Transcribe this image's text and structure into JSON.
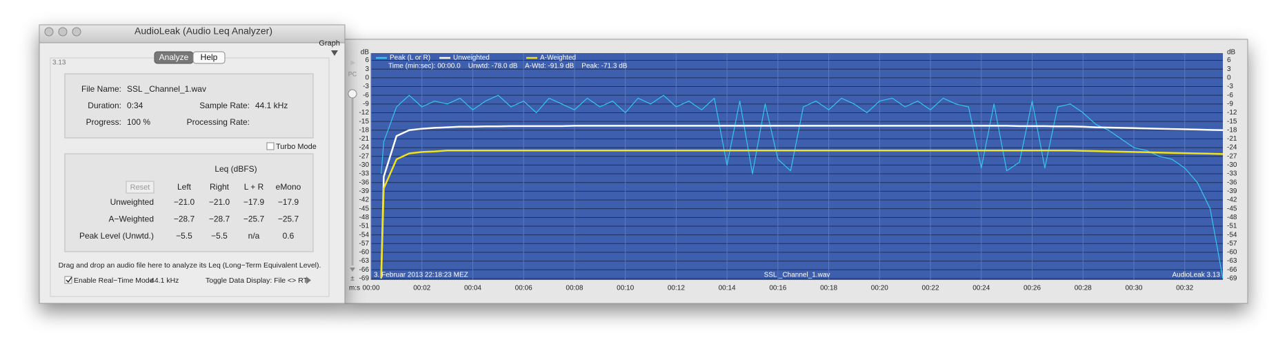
{
  "window": {
    "title": "AudioLeak (Audio Leq Analyzer)",
    "graph_toggle": "Graph",
    "version": "3.13",
    "tabs": [
      "Analyze",
      "Help"
    ],
    "file_info": {
      "file_name_label": "File Name:",
      "file_name": "SSL _Channel_1.wav",
      "duration_label": "Duration:",
      "duration": "0:34",
      "sample_rate_label": "Sample Rate:",
      "sample_rate": "44.1 kHz",
      "progress_label": "Progress:",
      "progress": "100 %",
      "processing_rate_label": "Processing Rate:"
    },
    "turbo_mode": "Turbo Mode",
    "leq": {
      "title": "Leq (dBFS)",
      "reset": "Reset",
      "headers": [
        "Left",
        "Right",
        "L + R",
        "eMono"
      ],
      "rows": [
        [
          "Unweighted",
          "−21.0",
          "−21.0",
          "−17.9",
          "−17.9"
        ],
        [
          "A−Weighted",
          "−28.7",
          "−28.7",
          "−25.7",
          "−25.7"
        ],
        [
          "Peak Level (Unwtd.)",
          "−5.5",
          "−5.5",
          "n/a",
          "0.6"
        ]
      ]
    },
    "instruction": "Drag and drop an audio file here to analyze its Leq (Long−Term Equivalent Level).",
    "realtime_label": "Enable Real−Time Mode",
    "realtime_rate": "44.1 kHz",
    "toggle_display": "Toggle Data Display: File <> RT",
    "side_labels": [
      "PC",
      "±"
    ]
  },
  "chart_data": {
    "type": "line",
    "y_label": "dB",
    "x_label": "m:s",
    "info": "Time (min:sec): 00:00.0    Unwtd: -78.0 dB    A-Wtd: -91.9 dB    Peak: -71.3 dB",
    "footer_left": "3. Februar 2013 22:18:23 MEZ",
    "footer_center": "SSL _Channel_1.wav",
    "footer_right": "AudioLeak 3.13",
    "xlim": [
      0,
      33.5
    ],
    "ylim": [
      -69.5,
      8.5
    ],
    "grid": true,
    "background": "#3d5fae",
    "xticks": [
      {
        "value": 0,
        "label": "00:00"
      },
      {
        "value": 2,
        "label": "00:02"
      },
      {
        "value": 4,
        "label": "00:04"
      },
      {
        "value": 6,
        "label": "00:06"
      },
      {
        "value": 8,
        "label": "00:08"
      },
      {
        "value": 10,
        "label": "00:10"
      },
      {
        "value": 12,
        "label": "00:12"
      },
      {
        "value": 14,
        "label": "00:14"
      },
      {
        "value": 16,
        "label": "00:16"
      },
      {
        "value": 18,
        "label": "00:18"
      },
      {
        "value": 20,
        "label": "00:20"
      },
      {
        "value": 22,
        "label": "00:22"
      },
      {
        "value": 24,
        "label": "00:24"
      },
      {
        "value": 26,
        "label": "00:26"
      },
      {
        "value": 28,
        "label": "00:28"
      },
      {
        "value": 30,
        "label": "00:30"
      },
      {
        "value": 32,
        "label": "00:32"
      }
    ],
    "yticks": [
      6,
      3,
      0,
      -3,
      -6,
      -9,
      -12,
      -15,
      -18,
      -21,
      -24,
      -27,
      -30,
      -33,
      -36,
      -39,
      -42,
      -45,
      -48,
      -51,
      -54,
      -57,
      -60,
      -63,
      -66,
      -69
    ],
    "x": [
      0.4,
      0.5,
      1,
      1.5,
      2,
      2.5,
      3,
      3.5,
      4,
      4.5,
      5,
      5.5,
      6,
      6.5,
      7,
      7.5,
      8,
      8.5,
      9,
      9.5,
      10,
      10.5,
      11,
      11.5,
      12,
      12.5,
      13,
      13.5,
      14,
      14.5,
      15,
      15.5,
      16,
      16.5,
      17,
      17.5,
      18,
      18.5,
      19,
      19.5,
      20,
      20.5,
      21,
      21.5,
      22,
      22.5,
      23,
      23.5,
      24,
      24.5,
      25,
      25.5,
      26,
      26.5,
      27,
      27.5,
      28,
      28.5,
      29,
      29.5,
      30,
      30.5,
      31,
      31.5,
      32,
      32.5,
      33,
      33.5
    ],
    "series": [
      {
        "name": "Peak (L or R)",
        "color": "#35c8ee",
        "width": 1.2,
        "values": [
          -33,
          -22,
          -10,
          -6,
          -10,
          -8,
          -9,
          -7,
          -11,
          -8,
          -6,
          -10,
          -8,
          -12,
          -7,
          -9,
          -11,
          -7,
          -10,
          -8,
          -12,
          -7,
          -9,
          -6,
          -10,
          -8,
          -11,
          -7,
          -30,
          -8,
          -33,
          -9,
          -28,
          -32,
          -10,
          -8,
          -11,
          -7,
          -9,
          -12,
          -8,
          -7,
          -10,
          -8,
          -11,
          -7,
          -9,
          -10,
          -31,
          -9,
          -32,
          -29,
          -8,
          -31,
          -10,
          -9,
          -12,
          -16,
          -18,
          -21,
          -24,
          -25,
          -27,
          -28,
          -31,
          -36,
          -45,
          -69
        ]
      },
      {
        "name": "Unweighted",
        "color": "#ffffff",
        "width": 2.5,
        "values": [
          -69,
          -34,
          -20,
          -18,
          -17.5,
          -17.2,
          -17,
          -16.8,
          -16.8,
          -16.7,
          -16.7,
          -16.6,
          -16.6,
          -16.6,
          -16.6,
          -16.6,
          -16.5,
          -16.5,
          -16.5,
          -16.5,
          -16.5,
          -16.5,
          -16.5,
          -16.5,
          -16.5,
          -16.5,
          -16.5,
          -16.5,
          -16.5,
          -16.5,
          -16.5,
          -16.5,
          -16.5,
          -16.5,
          -16.5,
          -16.5,
          -16.5,
          -16.5,
          -16.5,
          -16.5,
          -16.5,
          -16.5,
          -16.5,
          -16.5,
          -16.5,
          -16.5,
          -16.5,
          -16.5,
          -16.5,
          -16.5,
          -16.5,
          -16.6,
          -16.6,
          -16.6,
          -16.7,
          -16.7,
          -16.8,
          -17,
          -17.1,
          -17.2,
          -17.3,
          -17.4,
          -17.5,
          -17.6,
          -17.7,
          -17.8,
          -17.9,
          -18
        ]
      },
      {
        "name": "A-Weighted",
        "color": "#f2e21a",
        "width": 2.5,
        "values": [
          -69,
          -38,
          -28,
          -26,
          -25.5,
          -25.3,
          -25,
          -25,
          -25,
          -25,
          -25,
          -25,
          -25,
          -25,
          -25,
          -25,
          -25,
          -25,
          -25,
          -25,
          -25,
          -25,
          -25,
          -25,
          -25,
          -25,
          -25,
          -25,
          -25,
          -25,
          -25,
          -25,
          -25,
          -25,
          -25,
          -25,
          -25,
          -25,
          -25,
          -25,
          -25,
          -25,
          -25,
          -25,
          -25,
          -25,
          -25,
          -25,
          -25,
          -25,
          -25,
          -25,
          -25,
          -25,
          -25,
          -25,
          -25.1,
          -25.2,
          -25.3,
          -25.4,
          -25.5,
          -25.6,
          -25.7,
          -25.8,
          -25.9,
          -26,
          -26.1,
          -26.2
        ]
      }
    ]
  }
}
